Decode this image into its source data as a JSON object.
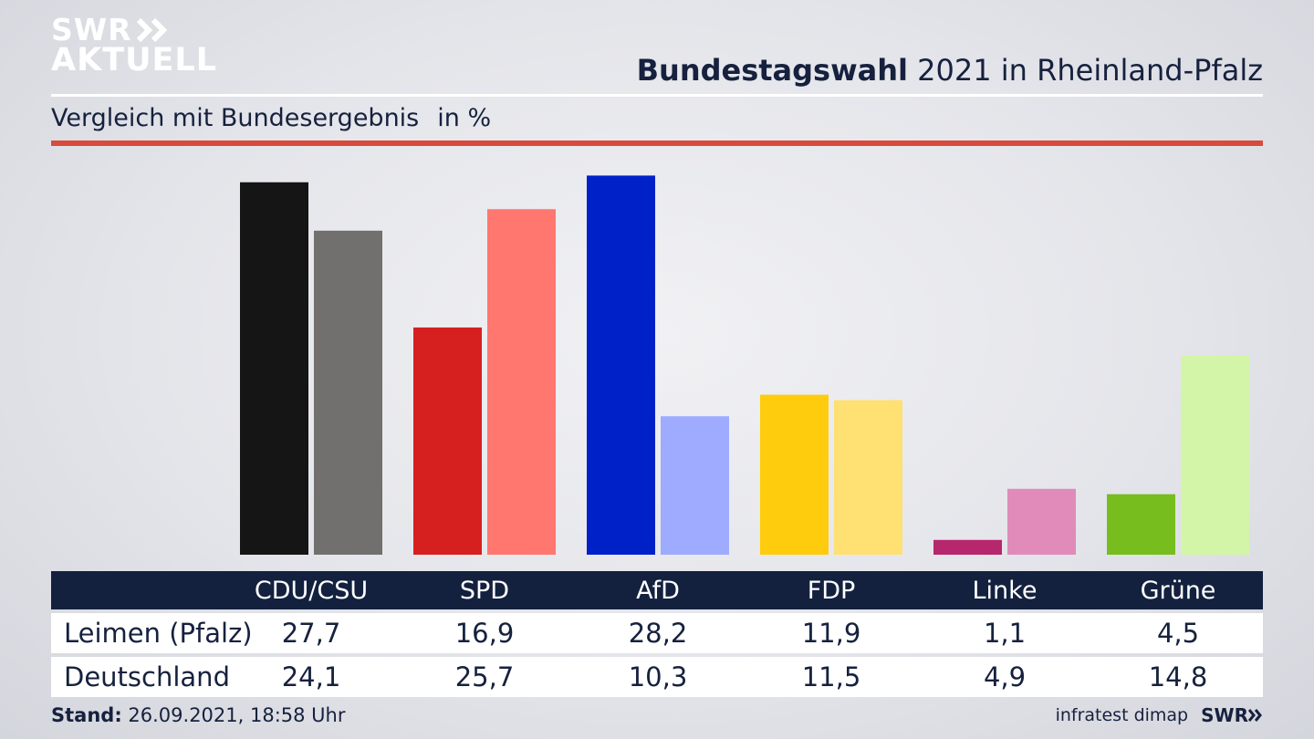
{
  "branding": {
    "logo_line1": "SWR",
    "logo_line2": "AKTUELL",
    "footer_logo": "SWR"
  },
  "header": {
    "title_bold": "Bundestagswahl",
    "title_rest": " 2021 in Rheinland-Pfalz",
    "subtitle": "Vergleich mit Bundesergebnis",
    "unit": "in %"
  },
  "chart_data": {
    "type": "bar",
    "categories": [
      "CDU/CSU",
      "SPD",
      "AfD",
      "FDP",
      "Linke",
      "Grüne"
    ],
    "series": [
      {
        "name": "Leimen (Pfalz)",
        "values": [
          27.7,
          16.9,
          28.2,
          11.9,
          1.1,
          4.5
        ],
        "colors": [
          "#151515",
          "#d61f1f",
          "#0021c8",
          "#ffcc0d",
          "#b6276e",
          "#76bd1d"
        ]
      },
      {
        "name": "Deutschland",
        "values": [
          24.1,
          25.7,
          10.3,
          11.5,
          4.9,
          14.8
        ],
        "colors": [
          "#72706e",
          "#ff776f",
          "#9fabff",
          "#ffe072",
          "#e08bb9",
          "#d3f5a8"
        ]
      }
    ],
    "ylim": [
      0,
      28.5
    ],
    "grid": false,
    "value_labels": {
      "Leimen (Pfalz)": [
        "27,7",
        "16,9",
        "28,2",
        "11,9",
        "1,1",
        "4,5"
      ],
      "Deutschland": [
        "24,1",
        "25,7",
        "10,3",
        "11,5",
        "4,9",
        "14,8"
      ]
    }
  },
  "footer": {
    "stand_label": "Stand:",
    "stand_value": " 26.09.2021, 18:58 Uhr",
    "source": "infratest dimap"
  }
}
